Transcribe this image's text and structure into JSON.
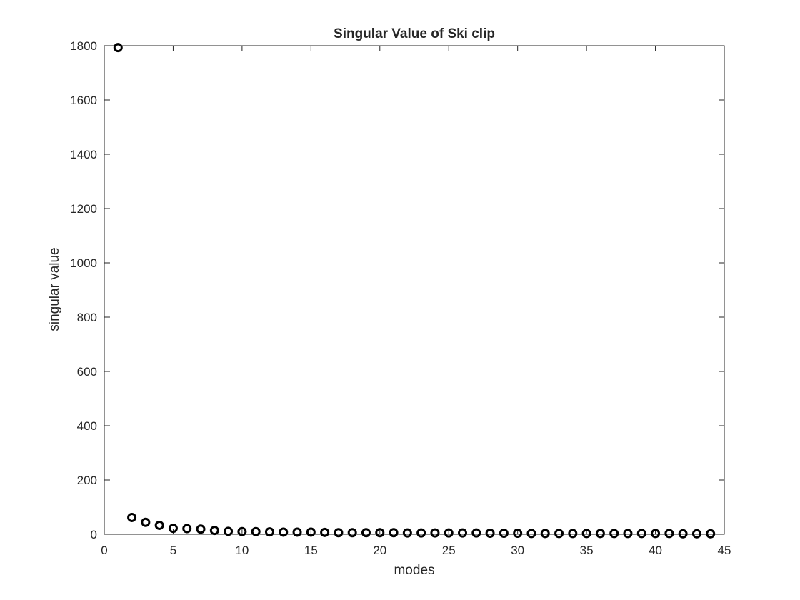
{
  "chart_data": {
    "type": "scatter",
    "title": "Singular Value of Ski clip",
    "xlabel": "modes",
    "ylabel": "singular value",
    "xlim": [
      0,
      45
    ],
    "ylim": [
      0,
      1800
    ],
    "xticks": [
      0,
      5,
      10,
      15,
      20,
      25,
      30,
      35,
      40,
      45
    ],
    "yticks": [
      0,
      200,
      400,
      600,
      800,
      1000,
      1200,
      1400,
      1600,
      1800
    ],
    "grid": false,
    "marker": "circle-open",
    "colors": {
      "marker": "#000000",
      "axes": "#262626",
      "background": "#ffffff"
    },
    "series": [
      {
        "x": [
          1,
          2,
          3,
          4,
          5,
          6,
          7,
          8,
          9,
          10,
          11,
          12,
          13,
          14,
          15,
          16,
          17,
          18,
          19,
          20,
          21,
          22,
          23,
          24,
          25,
          26,
          27,
          28,
          29,
          30,
          31,
          32,
          33,
          34,
          35,
          36,
          37,
          38,
          39,
          40,
          41,
          42,
          43,
          44
        ],
        "y": [
          1793,
          62,
          44,
          33,
          22,
          21,
          19,
          14,
          11,
          10,
          10,
          9,
          8,
          8,
          8,
          7,
          6,
          6,
          6,
          6,
          6,
          5,
          5,
          5,
          5,
          5,
          5,
          4,
          4,
          4,
          3,
          3,
          3,
          3,
          3,
          3,
          3,
          3,
          3,
          3,
          3,
          2,
          2,
          2
        ]
      }
    ]
  }
}
